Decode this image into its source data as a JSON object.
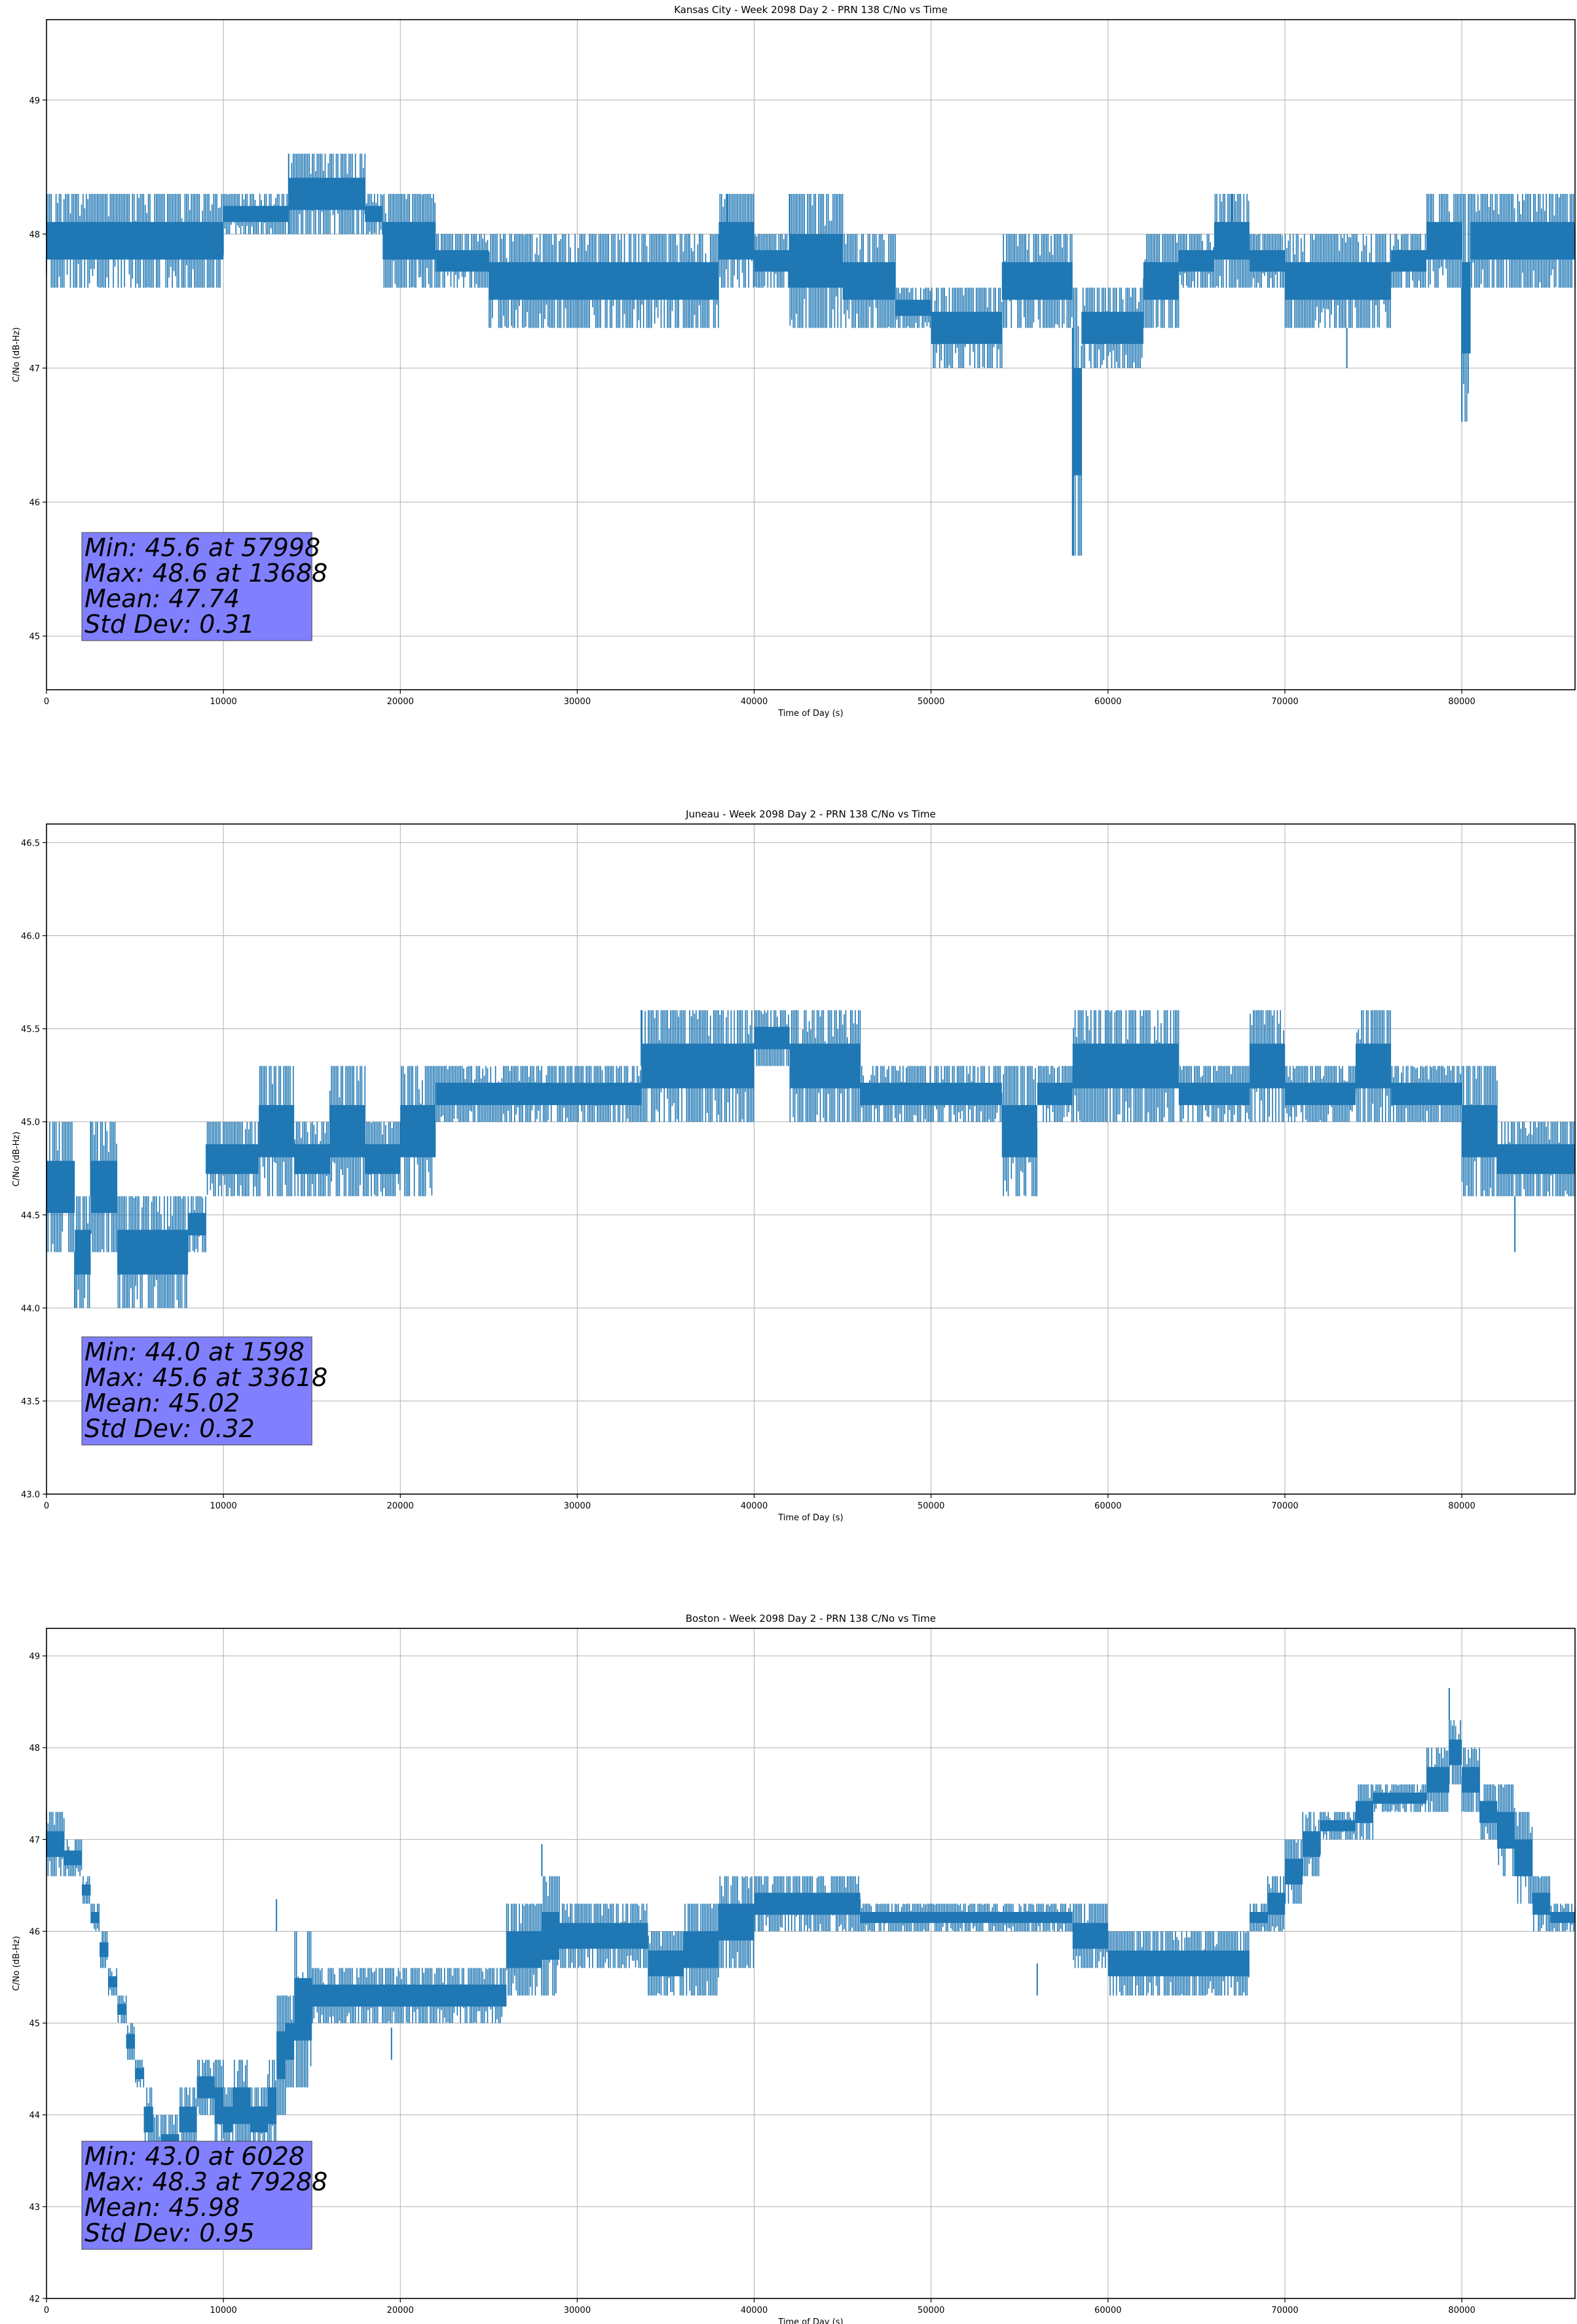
{
  "chart_data": [
    {
      "type": "line",
      "title": "Kansas City - Week 2098 Day 2 - PRN 138 C/No vs Time",
      "xlabel": "Time of Day (s)",
      "ylabel": "C/No (dB-Hz)",
      "xlim": [
        0,
        86400
      ],
      "ylim": [
        44.6,
        49.6
      ],
      "xticks": [
        0,
        10000,
        20000,
        30000,
        40000,
        50000,
        60000,
        70000,
        80000
      ],
      "yticks": [
        45,
        46,
        47,
        48,
        49
      ],
      "ytick_labels": [
        "45",
        "46",
        "47",
        "48",
        "49"
      ],
      "grid": true,
      "color": "#1f77b4",
      "series": [
        {
          "x": [
            0,
            2000,
            4000,
            6000,
            8000,
            10000,
            12000,
            13688,
            14000,
            16000,
            18000,
            19000,
            22000,
            25000,
            28000,
            30000,
            33000,
            36000,
            38000,
            40000,
            42000,
            45000,
            48000,
            50000,
            52000,
            54000,
            56000,
            57998,
            58500,
            60000,
            62000,
            64000,
            66000,
            68000,
            70000,
            72000,
            74000,
            76000,
            78000,
            80000,
            80500,
            82000,
            84000,
            86400
          ],
          "low": [
            47.6,
            47.6,
            47.6,
            47.6,
            47.6,
            48.0,
            48.0,
            48.0,
            48.0,
            48.0,
            48.0,
            47.6,
            47.6,
            47.3,
            47.3,
            47.3,
            47.3,
            47.3,
            47.6,
            47.6,
            47.3,
            47.3,
            47.3,
            47.0,
            47.0,
            47.3,
            47.3,
            45.6,
            47.0,
            47.0,
            47.3,
            47.6,
            47.6,
            47.6,
            47.3,
            47.3,
            47.3,
            47.6,
            47.6,
            46.6,
            47.6,
            47.6,
            47.6,
            47.6
          ],
          "high": [
            48.3,
            48.3,
            48.3,
            48.3,
            48.3,
            48.3,
            48.3,
            48.6,
            48.6,
            48.6,
            48.3,
            48.3,
            48.0,
            48.0,
            48.0,
            48.0,
            48.0,
            48.0,
            48.3,
            48.0,
            48.3,
            48.0,
            47.6,
            47.6,
            47.6,
            48.0,
            48.0,
            47.6,
            47.6,
            47.6,
            48.0,
            48.0,
            48.3,
            48.0,
            48.0,
            48.0,
            48.0,
            48.0,
            48.3,
            48.3,
            48.3,
            48.3,
            48.3,
            48.3
          ]
        }
      ],
      "annotation": {
        "min": "Min: 45.6 at 57998",
        "max": "Max: 48.6 at 13688",
        "mean": "Mean: 47.74",
        "std": "Std Dev: 0.31"
      }
    },
    {
      "type": "line",
      "title": "Juneau - Week 2098 Day 2 - PRN 138 C/No vs Time",
      "xlabel": "Time of Day (s)",
      "ylabel": "C/No (dB-Hz)",
      "xlim": [
        0,
        86400
      ],
      "ylim": [
        43.0,
        46.6
      ],
      "xticks": [
        0,
        10000,
        20000,
        30000,
        40000,
        50000,
        60000,
        70000,
        80000
      ],
      "yticks": [
        43.0,
        43.5,
        44.0,
        44.5,
        45.0,
        45.5,
        46.0,
        46.5
      ],
      "ytick_labels": [
        "43.0",
        "43.5",
        "44.0",
        "44.5",
        "45.0",
        "45.5",
        "46.0",
        "46.5"
      ],
      "grid": true,
      "color": "#1f77b4",
      "series": [
        {
          "x": [
            0,
            1598,
            2500,
            4000,
            6000,
            8000,
            9000,
            10000,
            12000,
            14000,
            16000,
            18000,
            20000,
            22000,
            24000,
            26000,
            28000,
            30000,
            32000,
            33618,
            34000,
            36000,
            38000,
            40000,
            42000,
            44000,
            46000,
            48000,
            50000,
            52000,
            54000,
            56000,
            58000,
            60000,
            62000,
            64000,
            66000,
            68000,
            70000,
            72000,
            74000,
            76000,
            78000,
            80000,
            82000,
            84000,
            86400
          ],
          "low": [
            44.3,
            44.0,
            44.3,
            44.0,
            44.0,
            44.3,
            44.6,
            44.6,
            44.6,
            44.6,
            44.6,
            44.6,
            44.6,
            45.0,
            45.0,
            45.0,
            45.0,
            45.0,
            45.0,
            45.0,
            45.0,
            45.0,
            45.0,
            45.3,
            45.0,
            45.0,
            45.0,
            45.0,
            45.0,
            45.0,
            44.6,
            45.0,
            45.0,
            45.0,
            45.0,
            45.0,
            45.0,
            45.0,
            45.0,
            45.0,
            45.0,
            45.0,
            45.0,
            44.6,
            44.6,
            44.6,
            44.6
          ],
          "high": [
            45.0,
            44.6,
            45.0,
            44.6,
            44.6,
            44.6,
            45.0,
            45.0,
            45.3,
            45.0,
            45.3,
            45.0,
            45.3,
            45.3,
            45.3,
            45.3,
            45.3,
            45.3,
            45.3,
            45.6,
            45.6,
            45.6,
            45.6,
            45.6,
            45.6,
            45.6,
            45.3,
            45.3,
            45.3,
            45.3,
            45.3,
            45.3,
            45.6,
            45.6,
            45.6,
            45.3,
            45.3,
            45.6,
            45.3,
            45.3,
            45.6,
            45.3,
            45.3,
            45.3,
            45.0,
            45.0,
            45.0
          ]
        }
      ],
      "annotation": {
        "min": "Min: 44.0 at 1598",
        "max": "Max: 45.6 at 33618",
        "mean": "Mean: 45.02",
        "std": "Std Dev: 0.32"
      }
    },
    {
      "type": "line",
      "title": "Boston - Week 2098 Day 2 - PRN 138 C/No vs Time",
      "xlabel": "Time of Day (s)",
      "ylabel": "C/No (dB-Hz)",
      "xlim": [
        0,
        86400
      ],
      "ylim": [
        42.0,
        49.3
      ],
      "xticks": [
        0,
        10000,
        20000,
        30000,
        40000,
        50000,
        60000,
        70000,
        80000
      ],
      "yticks": [
        42,
        43,
        44,
        45,
        46,
        47,
        48,
        49
      ],
      "ytick_labels": [
        "42",
        "43",
        "44",
        "45",
        "46",
        "47",
        "48",
        "49"
      ],
      "grid": true,
      "color": "#1f77b4",
      "series": [
        {
          "x": [
            0,
            500,
            1000,
            1500,
            2000,
            2500,
            3000,
            3500,
            4000,
            4500,
            5000,
            5500,
            6028,
            6500,
            7000,
            7500,
            8000,
            8500,
            9000,
            9500,
            10000,
            10500,
            11000,
            11500,
            12000,
            12500,
            13000,
            13500,
            14000,
            15000,
            16000,
            17000,
            18000,
            19000,
            20000,
            22000,
            24000,
            26000,
            28000,
            29000,
            30000,
            32000,
            34000,
            36000,
            37000,
            38000,
            40000,
            42000,
            44000,
            46000,
            48000,
            50000,
            52000,
            54000,
            56000,
            58000,
            60000,
            62000,
            64000,
            66000,
            68000,
            69000,
            70000,
            71000,
            72000,
            73000,
            74000,
            75000,
            76000,
            77000,
            78000,
            79288,
            80000,
            81000,
            82000,
            83000,
            84000,
            85000,
            86400
          ],
          "low": [
            46.6,
            46.6,
            46.6,
            46.6,
            46.3,
            46.0,
            45.6,
            45.3,
            45.0,
            44.6,
            44.3,
            43.6,
            43.0,
            43.3,
            43.3,
            43.6,
            43.6,
            44.0,
            44.0,
            43.6,
            43.6,
            43.6,
            43.6,
            43.6,
            43.6,
            43.6,
            44.0,
            44.3,
            44.3,
            45.0,
            45.0,
            45.0,
            45.0,
            45.0,
            45.0,
            45.0,
            45.0,
            45.3,
            45.3,
            45.6,
            45.6,
            45.6,
            45.3,
            45.3,
            45.3,
            45.6,
            46.0,
            46.0,
            46.0,
            46.0,
            46.0,
            46.0,
            46.0,
            46.0,
            46.0,
            45.6,
            45.3,
            45.3,
            45.3,
            45.3,
            46.0,
            46.0,
            46.3,
            46.6,
            47.0,
            47.0,
            47.0,
            47.3,
            47.3,
            47.3,
            47.3,
            47.6,
            47.3,
            47.0,
            46.6,
            46.3,
            46.0,
            46.0,
            46.0
          ],
          "high": [
            47.3,
            47.3,
            47.0,
            47.0,
            46.6,
            46.3,
            46.0,
            45.6,
            45.3,
            45.0,
            44.6,
            44.3,
            44.0,
            44.0,
            44.0,
            44.3,
            44.3,
            44.6,
            44.6,
            44.6,
            44.3,
            44.6,
            44.6,
            44.3,
            44.3,
            44.6,
            45.3,
            45.3,
            46.0,
            45.6,
            45.6,
            45.6,
            45.6,
            45.6,
            45.6,
            45.6,
            45.6,
            46.3,
            46.6,
            46.3,
            46.3,
            46.3,
            46.0,
            46.3,
            46.3,
            46.6,
            46.6,
            46.6,
            46.6,
            46.3,
            46.3,
            46.3,
            46.3,
            46.3,
            46.3,
            46.3,
            46.0,
            46.0,
            46.0,
            46.0,
            46.3,
            46.6,
            47.0,
            47.3,
            47.3,
            47.3,
            47.6,
            47.6,
            47.6,
            47.6,
            48.0,
            48.3,
            48.0,
            47.6,
            47.6,
            47.3,
            46.6,
            46.3,
            46.3
          ],
          "dips": [
            [
              5800,
              43.0
            ],
            [
              6028,
              43.0
            ],
            [
              13000,
              46.0
            ],
            [
              19500,
              44.6
            ],
            [
              28000,
              46.6
            ],
            [
              56000,
              45.3
            ],
            [
              79288,
              48.3
            ]
          ]
        }
      ],
      "annotation": {
        "min": "Min: 43.0 at 6028",
        "max": "Max: 48.3 at 79288",
        "mean": "Mean: 45.98",
        "std": "Std Dev: 0.95"
      }
    }
  ]
}
